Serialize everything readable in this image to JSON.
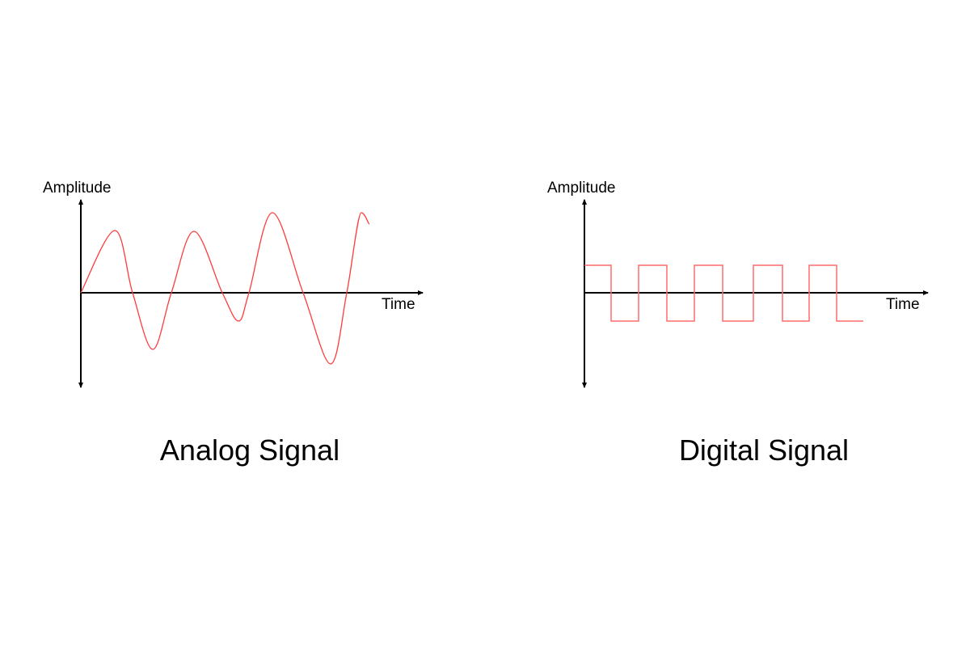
{
  "analog": {
    "y_axis_label": "Amplitude",
    "x_axis_label": "Time",
    "title": "Analog Signal"
  },
  "digital": {
    "y_axis_label": "Amplitude",
    "x_axis_label": "Time",
    "title": "Digital Signal"
  },
  "colors": {
    "signal": "#ff3b3b",
    "axis": "#000000"
  }
}
